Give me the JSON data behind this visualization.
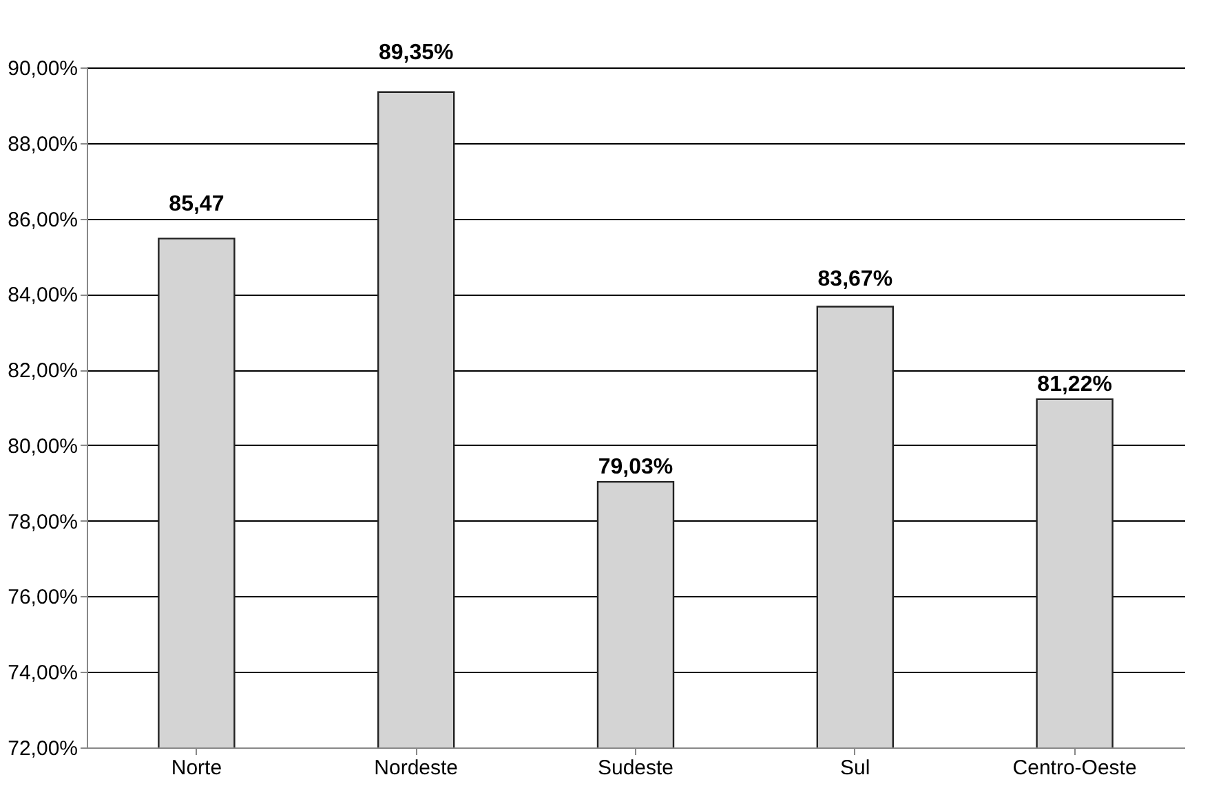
{
  "chart_data": {
    "type": "bar",
    "categories": [
      "Norte",
      "Nordeste",
      "Sudeste",
      "Sul",
      "Centro-Oeste"
    ],
    "values": [
      85.47,
      89.35,
      79.03,
      83.67,
      81.22
    ],
    "value_labels": [
      "85,47",
      "89,35%",
      "79,03%",
      "83,67%",
      "81,22%"
    ],
    "color": "#d4d4d4",
    "ylim": [
      72,
      90
    ],
    "yticks": [
      {
        "value": 72,
        "label": "72,00%"
      },
      {
        "value": 74,
        "label": "74,00%"
      },
      {
        "value": 76,
        "label": "76,00%"
      },
      {
        "value": 78,
        "label": "78,00%"
      },
      {
        "value": 80,
        "label": "80,00%"
      },
      {
        "value": 82,
        "label": "82,00%"
      },
      {
        "value": 84,
        "label": "84,00%"
      },
      {
        "value": 86,
        "label": "86,00%"
      },
      {
        "value": 88,
        "label": "88,00%"
      },
      {
        "value": 90,
        "label": "90,00%"
      }
    ],
    "grid": "y"
  }
}
